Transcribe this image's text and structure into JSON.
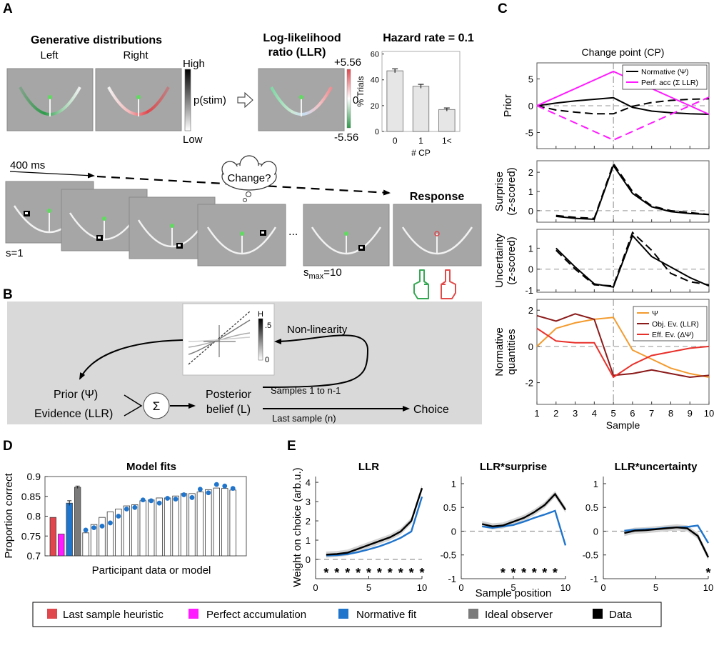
{
  "panel_letters": {
    "A": "A",
    "B": "B",
    "C": "C",
    "D": "D",
    "E": "E"
  },
  "panel_a": {
    "gen_title": "Generative distributions",
    "left_label": "Left",
    "right_label": "Right",
    "scale_high": "High",
    "scale_low": "Low",
    "scale_label": "p(stim)",
    "llr_title_1": "Log-likelihood",
    "llr_title_2": "ratio (LLR)",
    "llr_max": "+5.56",
    "llr_zero": "0",
    "llr_min": "-5.56",
    "hazard_title": "Hazard rate = 0.1",
    "timing_label": "400 ms",
    "thought_text": "Change?",
    "ellipsis": "...",
    "response_label": "Response",
    "s1_label": "s=1",
    "smax_s": "s",
    "smax_sub": "max",
    "smax_val": "=10",
    "colors": {
      "left": "#2e9a4a",
      "right": "#e0474c",
      "screen": "#a6a6a6",
      "arc": "#f2f2f2",
      "green_hand": "#35a853",
      "red_hand": "#e24a4a"
    }
  },
  "panel_b": {
    "prior": "Prior (Ψ)",
    "evidence": "Evidence (LLR)",
    "sum": "Σ",
    "posterior_1": "Posterior",
    "posterior_2": "belief (L)",
    "samples": "Samples 1 to n-1",
    "last_sample": "Last sample (n)",
    "choice": "Choice",
    "nonlinearity": "Non-linearity",
    "h_label": "H",
    "h_top": ".5",
    "h_bottom": "0"
  },
  "legend": {
    "items": [
      {
        "label": "Last sample heuristic",
        "color": "#e0474c"
      },
      {
        "label": "Perfect accumulation",
        "color": "#ff1aff"
      },
      {
        "label": "Normative fit",
        "color": "#1f74cc"
      },
      {
        "label": "Ideal observer",
        "color": "#7a7a7a"
      },
      {
        "label": "Data",
        "color": "#000000"
      }
    ]
  },
  "chart_data": [
    {
      "id": "A_hazard",
      "type": "bar",
      "title": "Hazard rate = 0.1",
      "categories": [
        "0",
        "1",
        "1<"
      ],
      "values": [
        47,
        35,
        17
      ],
      "errors": [
        1.5,
        1.5,
        1.2
      ],
      "xlabel": "# CP",
      "ylabel": "% Trials",
      "ylim": [
        0,
        62
      ],
      "yticks": [
        0,
        20,
        40,
        60
      ],
      "bar_color": "#e6e6e6"
    },
    {
      "id": "C_prior",
      "type": "line",
      "title": "Change point (CP)",
      "ylabel": "Prior",
      "x": [
        1,
        2,
        3,
        4,
        5,
        6,
        7,
        8,
        9,
        10
      ],
      "xlim": [
        1,
        10
      ],
      "ylim": [
        -8,
        8
      ],
      "yticks": [
        -5,
        0,
        5
      ],
      "series": [
        {
          "name": "Normative (Ψ)",
          "color": "#000000",
          "dash": "solid",
          "values": [
            0,
            0.5,
            0.9,
            1.2,
            1.5,
            -0.3,
            -1.0,
            -1.3,
            -1.5,
            -1.6
          ]
        },
        {
          "name": "Normative dashed",
          "color": "#000000",
          "dash": "dashed",
          "values": [
            0,
            -0.8,
            -1.2,
            -1.5,
            -1.5,
            -0.1,
            0.6,
            1.0,
            1.2,
            1.3
          ]
        },
        {
          "name": "Perf. acc (Σ LLR)",
          "color": "#ff1aff",
          "dash": "solid",
          "values": [
            0,
            1.6,
            3.2,
            4.8,
            6.4,
            4.8,
            3.2,
            1.6,
            0,
            -1.6
          ]
        },
        {
          "name": "Perf. acc dashed",
          "color": "#ff1aff",
          "dash": "dashed",
          "values": [
            0,
            -1.6,
            -3.2,
            -4.8,
            -6.4,
            -4.8,
            -3.2,
            -1.6,
            0,
            1.6
          ]
        }
      ],
      "legend": [
        "Normative (Ψ)",
        "Perf. acc (Σ LLR)"
      ]
    },
    {
      "id": "C_surprise",
      "type": "line",
      "ylabel_1": "Surprise",
      "ylabel_2": "(z-scored)",
      "x": [
        2,
        3,
        4,
        5,
        6,
        7,
        8,
        9,
        10
      ],
      "xlim": [
        1,
        10
      ],
      "ylim": [
        -0.6,
        2.6
      ],
      "yticks": [
        0,
        1,
        2
      ],
      "series": [
        {
          "name": "solid",
          "color": "#000000",
          "dash": "solid",
          "values": [
            -0.3,
            -0.4,
            -0.45,
            2.35,
            0.9,
            0.2,
            -0.05,
            -0.15,
            -0.2
          ]
        },
        {
          "name": "dashed",
          "color": "#000000",
          "dash": "dashed",
          "values": [
            -0.25,
            -0.35,
            -0.4,
            2.45,
            1.0,
            0.25,
            0.0,
            -0.1,
            -0.2
          ]
        }
      ]
    },
    {
      "id": "C_uncertainty",
      "type": "line",
      "ylabel_1": "Uncertainty",
      "ylabel_2": "(z-scored)",
      "x": [
        2,
        3,
        4,
        5,
        6,
        7,
        8,
        9,
        10
      ],
      "xlim": [
        1,
        10
      ],
      "ylim": [
        -1.1,
        1.9
      ],
      "yticks": [
        -1,
        0,
        1
      ],
      "series": [
        {
          "name": "solid",
          "color": "#000000",
          "dash": "solid",
          "values": [
            1.0,
            0.1,
            -0.7,
            -0.85,
            1.6,
            0.6,
            0.1,
            -0.4,
            -0.8
          ]
        },
        {
          "name": "dashed",
          "color": "#000000",
          "dash": "dashed",
          "values": [
            0.9,
            0.0,
            -0.75,
            -0.8,
            1.75,
            0.9,
            -0.2,
            -0.6,
            -0.75
          ]
        }
      ]
    },
    {
      "id": "C_normative",
      "type": "line",
      "ylabel_1": "Normative",
      "ylabel_2": "quantities",
      "xlabel": "Sample",
      "x": [
        1,
        2,
        3,
        4,
        5,
        6,
        7,
        8,
        9,
        10
      ],
      "xlim": [
        1,
        10
      ],
      "xticks": [
        1,
        2,
        3,
        4,
        5,
        6,
        7,
        8,
        9,
        10
      ],
      "ylim": [
        -3.2,
        2.6
      ],
      "yticks": [
        -2,
        0,
        2
      ],
      "series": [
        {
          "name": "Ψ",
          "color": "#f39b2e",
          "dash": "solid",
          "values": [
            0,
            1.0,
            1.3,
            1.5,
            1.6,
            -0.2,
            -0.7,
            -1.2,
            -1.5,
            -1.7
          ]
        },
        {
          "name": "Obj. Ev. (LLR)",
          "color": "#8b1a1a",
          "dash": "solid",
          "values": [
            1.7,
            1.4,
            1.8,
            1.5,
            -1.6,
            -1.5,
            -1.3,
            -1.5,
            -1.7,
            -1.6
          ]
        },
        {
          "name": "Eff. Ev. (ΔΨ)",
          "color": "#e8302a",
          "dash": "solid",
          "values": [
            1.0,
            0.3,
            0.2,
            0.2,
            -1.7,
            -1.0,
            -0.5,
            -0.3,
            -0.1,
            0.0
          ]
        }
      ],
      "legend": [
        "Ψ",
        "Obj. Ev. (LLR)",
        "Eff. Ev. (ΔΨ)"
      ]
    },
    {
      "id": "D_model_fits",
      "type": "bar",
      "title": "Model fits",
      "xlabel": "Participant data or model",
      "ylabel": "Proportion correct",
      "ylim": [
        0.7,
        0.9
      ],
      "yticks": [
        0.7,
        0.75,
        0.8,
        0.85,
        0.9
      ],
      "ytick_labels": [
        "0.7",
        "0.75",
        "0.8",
        "0.85",
        "0.9"
      ],
      "models": [
        {
          "name": "Last sample heuristic",
          "value": 0.797,
          "color": "#e0474c"
        },
        {
          "name": "Perfect accumulation",
          "value": 0.755,
          "color": "#ff1aff"
        },
        {
          "name": "Normative fit",
          "value": 0.833,
          "color": "#1f74cc",
          "error": 0.006
        },
        {
          "name": "Ideal observer",
          "value": 0.873,
          "color": "#7a7a7a",
          "error": 0.003
        }
      ],
      "participants": [
        0.758,
        0.779,
        0.797,
        0.811,
        0.818,
        0.826,
        0.829,
        0.839,
        0.841,
        0.846,
        0.846,
        0.851,
        0.857,
        0.857,
        0.861,
        0.867,
        0.871,
        0.87,
        0.866
      ],
      "normative_fits": [
        0.765,
        0.771,
        0.775,
        0.783,
        0.8,
        0.818,
        0.822,
        0.841,
        0.839,
        0.833,
        0.845,
        0.843,
        0.854,
        0.847,
        0.868,
        0.859,
        0.88,
        0.876,
        0.87
      ]
    },
    {
      "id": "E_llr",
      "type": "line",
      "title": "LLR",
      "ylabel": "Weight on choice (arb.u.)",
      "x": [
        1,
        2,
        3,
        4,
        5,
        6,
        7,
        8,
        9,
        10
      ],
      "xlim": [
        0,
        10
      ],
      "xticks": [
        0,
        5,
        10
      ],
      "ylim": [
        -1,
        4.3
      ],
      "yticks": [
        0,
        1,
        2,
        3,
        4
      ],
      "series": [
        {
          "name": "Data",
          "color": "#000000",
          "values": [
            0.25,
            0.28,
            0.35,
            0.55,
            0.75,
            0.95,
            1.15,
            1.45,
            2.0,
            3.7
          ]
        },
        {
          "name": "Normative fit",
          "color": "#1f74cc",
          "values": [
            0.2,
            0.22,
            0.27,
            0.38,
            0.52,
            0.68,
            0.88,
            1.12,
            1.45,
            3.25
          ]
        }
      ],
      "significance": [
        1,
        2,
        3,
        4,
        5,
        6,
        7,
        8,
        9,
        10
      ]
    },
    {
      "id": "E_surprise",
      "type": "line",
      "title": "LLR*surprise",
      "xlabel": "Sample position",
      "x": [
        2,
        3,
        4,
        5,
        6,
        7,
        8,
        9,
        10
      ],
      "xlim": [
        0,
        10
      ],
      "xticks": [
        0,
        5,
        10
      ],
      "ylim": [
        -1,
        1.15
      ],
      "yticks": [
        -1,
        -0.5,
        0,
        0.5,
        1
      ],
      "ytick_labels": [
        "-1",
        "-0.5",
        "0",
        "0.5",
        "1"
      ],
      "series": [
        {
          "name": "Data",
          "color": "#000000",
          "values": [
            0.15,
            0.1,
            0.12,
            0.2,
            0.28,
            0.4,
            0.55,
            0.78,
            0.45
          ]
        },
        {
          "name": "Normative fit",
          "color": "#1f74cc",
          "values": [
            0.1,
            0.07,
            0.1,
            0.13,
            0.2,
            0.28,
            0.35,
            0.43,
            -0.3
          ]
        }
      ],
      "significance": [
        4,
        5,
        6,
        7,
        8,
        9
      ]
    },
    {
      "id": "E_uncertainty",
      "type": "line",
      "title": "LLR*uncertainty",
      "x": [
        2,
        3,
        4,
        5,
        6,
        7,
        8,
        9,
        10
      ],
      "xlim": [
        0,
        10
      ],
      "xticks": [
        0,
        5,
        10
      ],
      "ylim": [
        -1,
        1.15
      ],
      "yticks": [
        -1,
        -0.5,
        0,
        0.5,
        1
      ],
      "ytick_labels": [
        "-1",
        "-0.5",
        "0",
        "0.5",
        "1"
      ],
      "series": [
        {
          "name": "Data",
          "color": "#000000",
          "values": [
            -0.04,
            0.01,
            0.02,
            0.04,
            0.06,
            0.08,
            0.06,
            -0.1,
            -0.55
          ]
        },
        {
          "name": "Normative fit",
          "color": "#1f74cc",
          "values": [
            0.01,
            0.03,
            0.04,
            0.05,
            0.07,
            0.08,
            0.09,
            0.12,
            -0.25
          ]
        }
      ],
      "significance": [
        10
      ]
    }
  ]
}
